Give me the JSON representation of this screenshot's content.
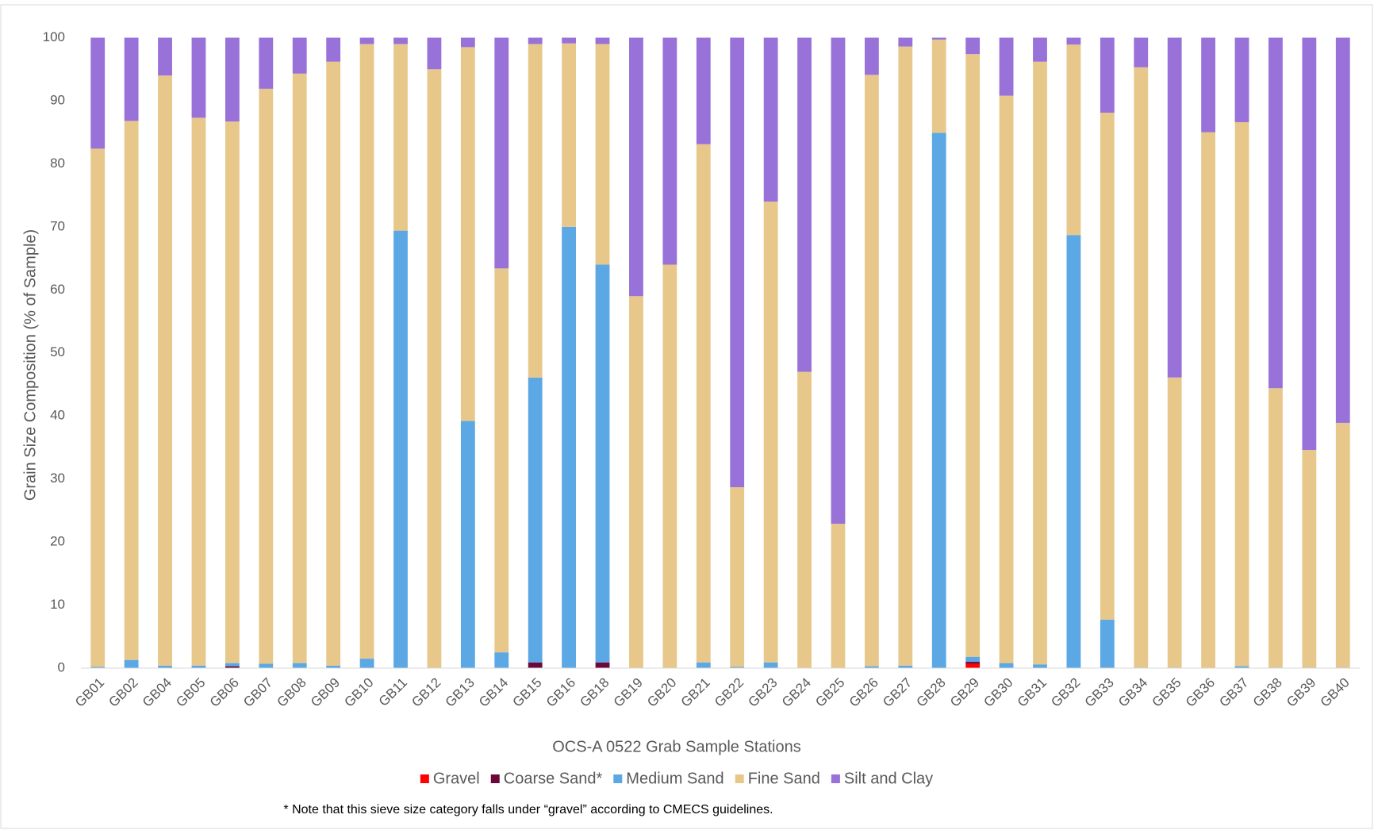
{
  "chart_data": {
    "type": "stacked_bar",
    "x_label": "OCS-A 0522 Grab Sample Stations",
    "y_label": "Grain Size Composition (% of Sample)",
    "note": "* Note that this sieve size category falls under “gravel” according to CMECS guidelines.",
    "categories": [
      "GB01",
      "GB02",
      "GB04",
      "GB05",
      "GB06",
      "GB07",
      "GB08",
      "GB09",
      "GB10",
      "GB11",
      "GB12",
      "GB13",
      "GB14",
      "GB15",
      "GB16",
      "GB18",
      "GB19",
      "GB20",
      "GB21",
      "GB22",
      "GB23",
      "GB24",
      "GB25",
      "GB26",
      "GB27",
      "GB28",
      "GB29",
      "GB30",
      "GB31",
      "GB32",
      "GB33",
      "GB34",
      "GB35",
      "GB36",
      "GB37",
      "GB38",
      "GB39",
      "GB40"
    ],
    "series": [
      {
        "name": "Gravel",
        "color": "#ff0000",
        "values": [
          0,
          0,
          0,
          0,
          0,
          0,
          0,
          0,
          0,
          0,
          0,
          0,
          0,
          0,
          0,
          0,
          0,
          0,
          0,
          0,
          0,
          0,
          0,
          0,
          0,
          0,
          0.7,
          0,
          0,
          0,
          0,
          0,
          0,
          0,
          0,
          0,
          0,
          0
        ]
      },
      {
        "name": "Coarse Sand*",
        "color": "#6b0a3a",
        "values": [
          0,
          0,
          0,
          0,
          0.3,
          0,
          0,
          0,
          0,
          0,
          0,
          0,
          0,
          0.9,
          0,
          0.9,
          0,
          0,
          0,
          0,
          0,
          0,
          0,
          0,
          0,
          0,
          0.3,
          0,
          0,
          0,
          0,
          0,
          0,
          0,
          0,
          0,
          0,
          0
        ]
      },
      {
        "name": "Medium Sand",
        "color": "#5ba8e5",
        "values": [
          0.2,
          1.3,
          0.4,
          0.4,
          0.5,
          0.7,
          0.8,
          0.4,
          1.5,
          69.4,
          0,
          39.2,
          2.5,
          45.2,
          70,
          63.1,
          0,
          0,
          0.9,
          0.2,
          0.9,
          0,
          0,
          0.3,
          0.4,
          84.9,
          0.8,
          0.8,
          0.6,
          68.7,
          7.7,
          0.1,
          0.1,
          0,
          0.3,
          0.1,
          0.1,
          0.1
        ]
      },
      {
        "name": "Fine Sand",
        "color": "#e8c88a",
        "values": [
          82.2,
          85.5,
          93.6,
          86.9,
          85.9,
          91.2,
          93.5,
          95.8,
          97.5,
          29.6,
          95,
          59.3,
          60.9,
          52.9,
          29.1,
          35,
          59,
          64,
          82.2,
          28.5,
          73.1,
          47,
          22.9,
          93.8,
          98.2,
          14.8,
          95.6,
          90,
          95.6,
          30.2,
          80.4,
          95.2,
          46,
          85,
          86.3,
          44.3,
          34.5,
          38.8
        ]
      },
      {
        "name": "Silt and Clay",
        "color": "#9872d8",
        "values": [
          17.6,
          13.2,
          6,
          12.7,
          13.3,
          8.1,
          5.7,
          3.8,
          1,
          1,
          5,
          1.5,
          36.6,
          1,
          0.9,
          1,
          41,
          36,
          16.9,
          71.3,
          26,
          53,
          77.1,
          5.9,
          1.4,
          0.3,
          2.6,
          9.2,
          3.8,
          1.1,
          11.9,
          4.7,
          53.9,
          15,
          13.4,
          55.6,
          65.4,
          61.1
        ]
      }
    ],
    "ylim": [
      0,
      100
    ],
    "yticks": [
      0,
      10,
      20,
      30,
      40,
      50,
      60,
      70,
      80,
      90,
      100
    ],
    "grid": false,
    "legend": "bottom"
  }
}
